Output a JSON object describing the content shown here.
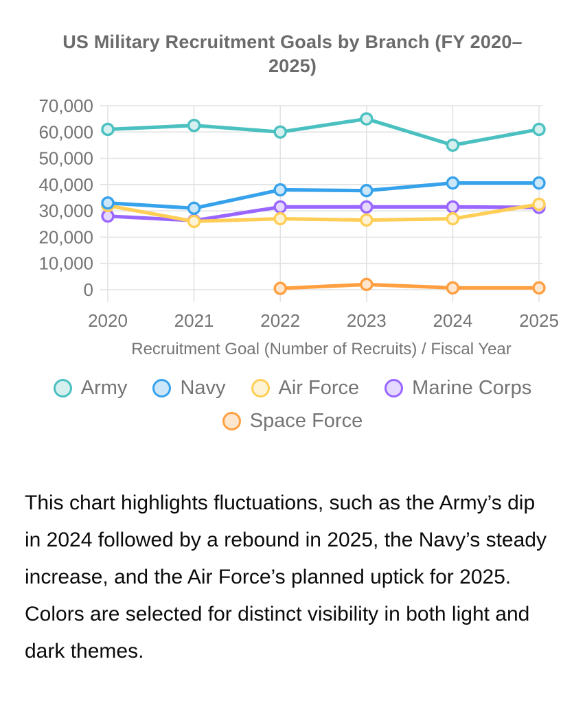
{
  "title": "US Military Recruitment Goals by Branch (FY 2020–2025)",
  "description": "This chart highlights fluctuations, such as the Army’s dip in 2024 followed by a rebound in 2025, the Navy’s steady increase, and the Air Force’s planned uptick for 2025. Colors are selected for distinct visibility in both light and dark themes.",
  "chart_data": {
    "type": "line",
    "title": "US Military Recruitment Goals by Branch (FY 2020–2025)",
    "xlabel": "Recruitment Goal (Number of Recruits) / Fiscal Year",
    "ylabel": "",
    "x": [
      "2020",
      "2021",
      "2022",
      "2023",
      "2024",
      "2025"
    ],
    "ylim": [
      0,
      70000
    ],
    "grid": true,
    "legend_position": "bottom",
    "grid_color": "#e2e2e2",
    "tick_color": "#747474",
    "yticks": [
      {
        "value": 0,
        "label": "0"
      },
      {
        "value": 10000,
        "label": "10,000"
      },
      {
        "value": 20000,
        "label": "20,000"
      },
      {
        "value": 30000,
        "label": "30,000"
      },
      {
        "value": 40000,
        "label": "40,000"
      },
      {
        "value": 50000,
        "label": "50,000"
      },
      {
        "value": 60000,
        "label": "60,000"
      },
      {
        "value": 70000,
        "label": "70,000"
      }
    ],
    "series": [
      {
        "name": "Army",
        "color": "#4BC0C0",
        "marker_fill": "#D6EFEF",
        "values": [
          61000,
          62500,
          60000,
          65000,
          55000,
          61000
        ]
      },
      {
        "name": "Navy",
        "color": "#36A2EB",
        "marker_fill": "#CDE7FA",
        "values": [
          33000,
          31000,
          38000,
          37700,
          40600,
          40600
        ]
      },
      {
        "name": "Air Force",
        "color": "#FFCE56",
        "marker_fill": "#FFF3D5",
        "values": [
          32000,
          26000,
          27000,
          26500,
          27000,
          32500
        ]
      },
      {
        "name": "Marine Corps",
        "color": "#9966FF",
        "marker_fill": "#E5D9FF",
        "values": [
          28000,
          26300,
          31500,
          31500,
          31500,
          31300
        ]
      },
      {
        "name": "Space Force",
        "color": "#FF9F40",
        "marker_fill": "#FFE7CF",
        "values": [
          null,
          null,
          500,
          2000,
          700,
          700
        ]
      }
    ],
    "legend_rows": [
      4,
      1
    ]
  }
}
